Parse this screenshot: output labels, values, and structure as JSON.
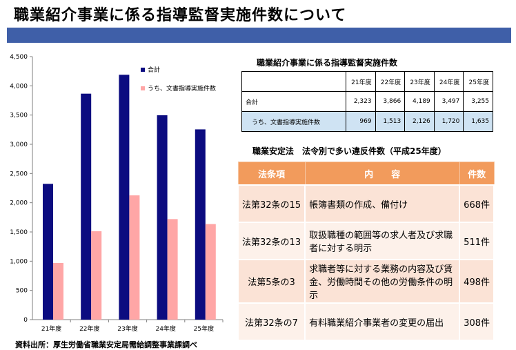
{
  "page": {
    "title": "職業紹介事業に係る指導監督実施件数について",
    "source": "資料出所：厚生労働省職業安定局需給調整事業課調べ"
  },
  "colors": {
    "title_bar": "#3f5fa8",
    "total": "#0c0c80",
    "document": "#ffa6a6",
    "table_header": "#f29b5c"
  },
  "chart_data": {
    "type": "bar",
    "categories": [
      "21年度",
      "22年度",
      "23年度",
      "24年度",
      "25年度"
    ],
    "series": [
      {
        "name": "合計",
        "values": [
          2323,
          3866,
          4189,
          3497,
          3255
        ],
        "color": "#0c0c80"
      },
      {
        "name": "うち、文書指導実施件数",
        "values": [
          969,
          1513,
          2126,
          1720,
          1635
        ],
        "color": "#ffa6a6"
      }
    ],
    "ylim": [
      0,
      4500
    ],
    "yticks": [
      "0",
      "500",
      "1,000",
      "1,500",
      "2,000",
      "2,500",
      "3,000",
      "3,500",
      "4,000",
      "4,500"
    ],
    "legend": "top-right",
    "grid": false
  },
  "stats_table": {
    "title": "職業紹介事業に係る指導監督実施件数",
    "headers": [
      "21年度",
      "22年度",
      "23年度",
      "24年度",
      "25年度"
    ],
    "rows": [
      {
        "label": "合計",
        "values": [
          "2,323",
          "3,866",
          "4,189",
          "3,497",
          "3,255"
        ]
      },
      {
        "label": "うち、文書指導実施件数",
        "values": [
          "969",
          "1,513",
          "2,126",
          "1,720",
          "1,635"
        ]
      }
    ]
  },
  "violations": {
    "title": "職業安定法　法令別で多い違反件数（平成25年度）",
    "headers": {
      "law": "法条項",
      "content": "内　　容",
      "count": "件数"
    },
    "rows": [
      {
        "law": "法第32条の15",
        "content": "帳簿書類の作成、備付け",
        "count": "668件"
      },
      {
        "law": "法第32条の13",
        "content": "取扱職種の範囲等の求人者及び求職者に対する明示",
        "count": "511件"
      },
      {
        "law": "法第5条の3",
        "content": "求職者等に対する業務の内容及び賃金、労働時間その他の労働条件の明示",
        "count": "498件"
      },
      {
        "law": "法第32条の7",
        "content": "有料職業紹介事業者の変更の届出",
        "count": "308件"
      }
    ]
  }
}
